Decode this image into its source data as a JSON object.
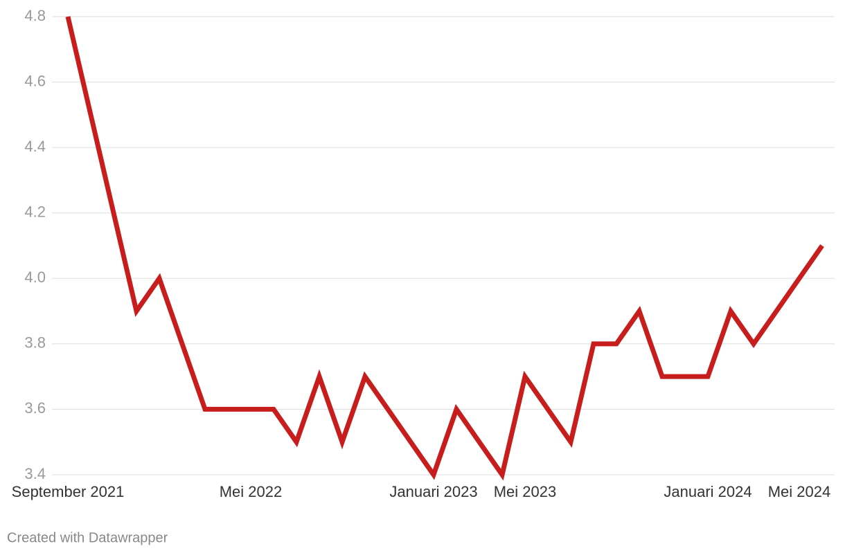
{
  "chart_data": {
    "type": "line",
    "categories": [
      "September 2021",
      null,
      null,
      null,
      null,
      null,
      null,
      null,
      "Mei 2022",
      null,
      null,
      null,
      null,
      null,
      null,
      null,
      "Januari 2023",
      null,
      null,
      null,
      "Mei 2023",
      null,
      null,
      null,
      null,
      null,
      null,
      null,
      "Januari 2024",
      null,
      null,
      null,
      "Mei 2024",
      null
    ],
    "series": [
      {
        "color": "#c71e1d",
        "values": [
          4.8,
          4.5,
          4.2,
          3.9,
          4.0,
          3.8,
          3.6,
          3.6,
          3.6,
          3.6,
          3.5,
          3.7,
          3.5,
          3.7,
          3.6,
          3.5,
          3.4,
          3.6,
          3.5,
          3.4,
          3.7,
          3.6,
          3.5,
          3.8,
          3.8,
          3.9,
          3.7,
          3.7,
          3.7,
          3.9,
          3.8,
          3.9,
          4.0,
          4.1
        ]
      }
    ],
    "ylim": [
      3.4,
      4.8
    ],
    "yticks": [
      3.4,
      3.6,
      3.8,
      {
        "value": 4,
        "label": "4.0"
      },
      4.2,
      4.4,
      4.6,
      4.8
    ],
    "grid": true,
    "credit": "Created with Datawrapper"
  }
}
